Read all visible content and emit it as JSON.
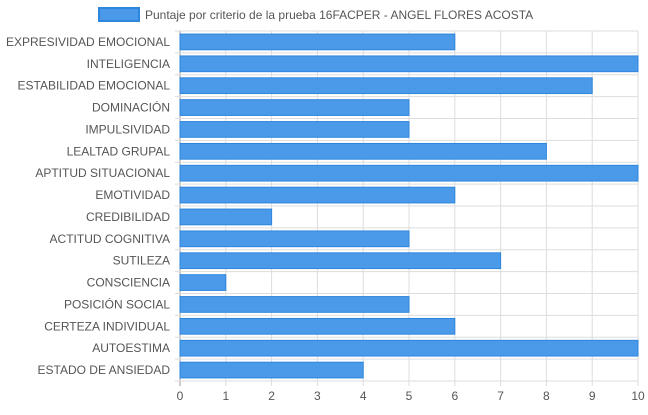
{
  "chart_data": {
    "type": "bar",
    "orientation": "horizontal",
    "legend": {
      "label": "Puntaje por criterio de la prueba 16FACPER - ANGEL FLORES ACOSTA",
      "position": "top"
    },
    "categories": [
      "EXPRESIVIDAD EMOCIONAL",
      "INTELIGENCIA",
      "ESTABILIDAD EMOCIONAL",
      "DOMINACIÓN",
      "IMPULSIVIDAD",
      "LEALTAD GRUPAL",
      "APTITUD SITUACIONAL",
      "EMOTIVIDAD",
      "CREDIBILIDAD",
      "ACTITUD COGNITIVA",
      "SUTILEZA",
      "CONSCIENCIA",
      "POSICIÓN SOCIAL",
      "CERTEZA INDIVIDUAL",
      "AUTOESTIMA",
      "ESTADO DE ANSIEDAD"
    ],
    "series": [
      {
        "name": "Puntaje por criterio de la prueba 16FACPER - ANGEL FLORES ACOSTA",
        "values": [
          6,
          10,
          9,
          5,
          5,
          8,
          10,
          6,
          2,
          5,
          7,
          1,
          5,
          6,
          10,
          4
        ],
        "color": "#4a9ae9",
        "border_color": "#2f86dd"
      }
    ],
    "xlim": [
      0,
      10
    ],
    "x_ticks": [
      "0",
      "1",
      "2",
      "3",
      "4",
      "5",
      "6",
      "7",
      "8",
      "9",
      "10"
    ],
    "grid": true,
    "grid_color": "#dddddd",
    "label_color": "#555555"
  }
}
